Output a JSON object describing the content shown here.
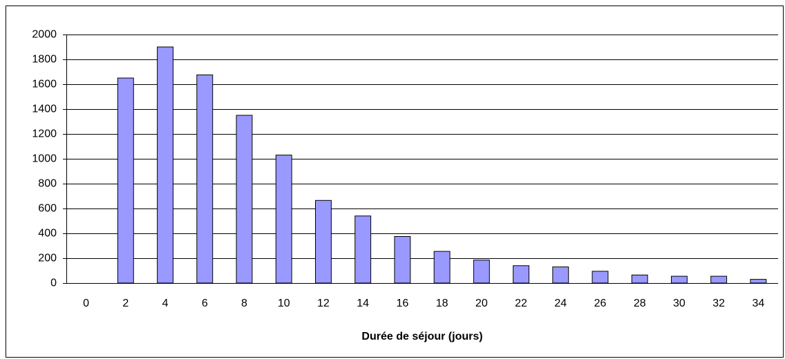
{
  "chart_data": {
    "type": "bar",
    "x_label": "Durée de séjour (jours)",
    "categories": [
      "0",
      "2",
      "4",
      "6",
      "8",
      "10",
      "12",
      "14",
      "16",
      "18",
      "20",
      "22",
      "24",
      "26",
      "28",
      "30",
      "32",
      "34"
    ],
    "values": [
      0,
      1650,
      1900,
      1675,
      1350,
      1030,
      665,
      540,
      375,
      255,
      185,
      140,
      130,
      95,
      65,
      55,
      55,
      30
    ],
    "color": "#9999ff",
    "ylim": [
      0,
      2000
    ],
    "yticks": [
      0,
      200,
      400,
      600,
      800,
      1000,
      1200,
      1400,
      1600,
      1800,
      2000
    ],
    "grid": true
  }
}
